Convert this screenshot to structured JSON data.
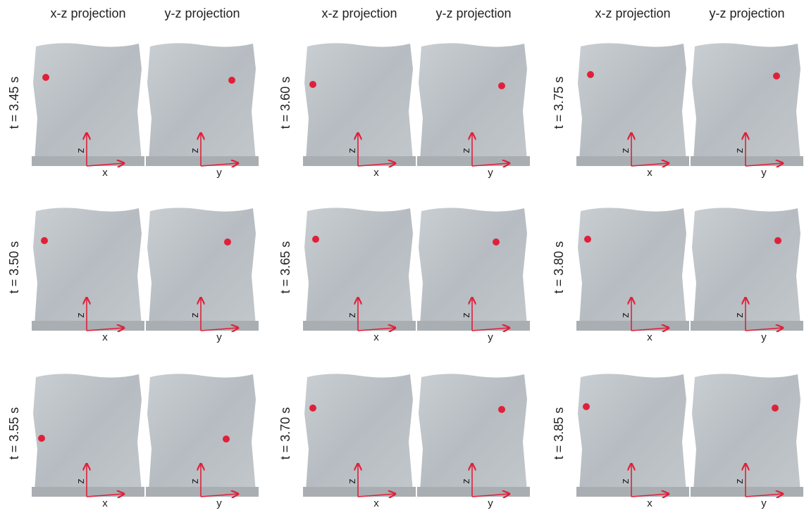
{
  "columns": [
    {
      "headers": [
        "x-z projection",
        "y-z projection"
      ]
    },
    {
      "headers": [
        "x-z projection",
        "y-z projection"
      ]
    },
    {
      "headers": [
        "x-z projection",
        "y-z projection"
      ]
    }
  ],
  "panels": [
    {
      "time": "t = 3.45 s",
      "left": {
        "axes": [
          "z",
          "x"
        ]
      },
      "right": {
        "axes": [
          "z",
          "y"
        ]
      }
    },
    {
      "time": "t = 3.50 s",
      "left": {
        "axes": [
          "z",
          "x"
        ]
      },
      "right": {
        "axes": [
          "z",
          "y"
        ]
      }
    },
    {
      "time": "t = 3.55 s",
      "left": {
        "axes": [
          "z",
          "x"
        ]
      },
      "right": {
        "axes": [
          "z",
          "y"
        ]
      }
    },
    {
      "time": "t = 3.60 s",
      "left": {
        "axes": [
          "z",
          "x"
        ]
      },
      "right": {
        "axes": [
          "z",
          "y"
        ]
      }
    },
    {
      "time": "t = 3.65 s",
      "left": {
        "axes": [
          "z",
          "x"
        ]
      },
      "right": {
        "axes": [
          "z",
          "y"
        ]
      }
    },
    {
      "time": "t = 3.70 s",
      "left": {
        "axes": [
          "z",
          "x"
        ]
      },
      "right": {
        "axes": [
          "z",
          "y"
        ]
      }
    },
    {
      "time": "t = 3.75 s",
      "left": {
        "axes": [
          "z",
          "x"
        ]
      },
      "right": {
        "axes": [
          "z",
          "y"
        ]
      }
    },
    {
      "time": "t = 3.80 s",
      "left": {
        "axes": [
          "z",
          "x"
        ]
      },
      "right": {
        "axes": [
          "z",
          "y"
        ]
      }
    },
    {
      "time": "t = 3.85 s",
      "left": {
        "axes": [
          "z",
          "x"
        ]
      },
      "right": {
        "axes": [
          "z",
          "y"
        ]
      }
    }
  ]
}
